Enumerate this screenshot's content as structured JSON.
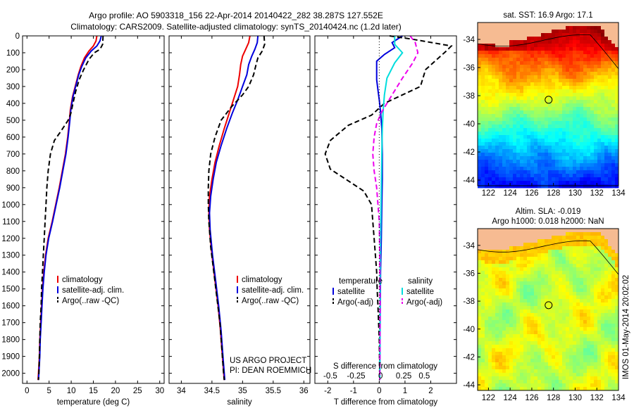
{
  "header": {
    "line1": "Argo profile: AO 5903318_156 22-Apr-2014 20140422_282 38.287S 127.552E",
    "line2": "Climatology: CARS2009. Satellite-adjusted climatology: synTS_20140424.nc (1.2d later)"
  },
  "chart_data": [
    {
      "type": "line",
      "xlabel": "temperature (deg C)",
      "xlim": [
        -1,
        31
      ],
      "ylim": [
        0,
        2060
      ],
      "xticks": [
        0,
        5,
        10,
        15,
        20,
        25,
        30
      ],
      "yticks": [
        0,
        100,
        200,
        300,
        400,
        500,
        600,
        700,
        800,
        900,
        1000,
        1100,
        1200,
        1300,
        1400,
        1500,
        1600,
        1700,
        1800,
        1900,
        2000
      ],
      "legend": [
        "climatology",
        "satellite-adj. clim.",
        "Argo(..raw -QC)"
      ],
      "series": [
        {
          "name": "climatology",
          "color": "#ee0000",
          "dash": false,
          "points": [
            [
              15.8,
              0
            ],
            [
              15.6,
              30
            ],
            [
              15.0,
              60
            ],
            [
              14.0,
              90
            ],
            [
              13.0,
              130
            ],
            [
              12.2,
              180
            ],
            [
              11.6,
              230
            ],
            [
              11.0,
              290
            ],
            [
              10.3,
              360
            ],
            [
              9.8,
              440
            ],
            [
              9.6,
              500
            ],
            [
              9.2,
              600
            ],
            [
              8.7,
              700
            ],
            [
              8.0,
              800
            ],
            [
              7.3,
              900
            ],
            [
              6.5,
              1000
            ],
            [
              5.7,
              1100
            ],
            [
              4.8,
              1200
            ],
            [
              4.2,
              1300
            ],
            [
              3.8,
              1400
            ],
            [
              3.5,
              1500
            ],
            [
              3.3,
              1600
            ],
            [
              3.1,
              1700
            ],
            [
              2.9,
              1800
            ],
            [
              2.8,
              1900
            ],
            [
              2.6,
              2000
            ],
            [
              2.5,
              2040
            ]
          ]
        },
        {
          "name": "satellite-adj. clim.",
          "color": "#0000dd",
          "dash": false,
          "points": [
            [
              16.8,
              0
            ],
            [
              16.5,
              30
            ],
            [
              15.8,
              60
            ],
            [
              14.5,
              90
            ],
            [
              13.3,
              130
            ],
            [
              12.4,
              180
            ],
            [
              11.7,
              230
            ],
            [
              11.1,
              290
            ],
            [
              10.4,
              360
            ],
            [
              9.9,
              440
            ],
            [
              9.7,
              500
            ],
            [
              9.3,
              600
            ],
            [
              8.8,
              700
            ],
            [
              8.1,
              800
            ],
            [
              7.4,
              900
            ],
            [
              6.6,
              1000
            ],
            [
              5.8,
              1100
            ],
            [
              4.9,
              1200
            ],
            [
              4.3,
              1300
            ],
            [
              3.9,
              1400
            ],
            [
              3.6,
              1500
            ],
            [
              3.4,
              1600
            ],
            [
              3.2,
              1700
            ],
            [
              3.0,
              1800
            ],
            [
              2.9,
              1900
            ],
            [
              2.7,
              2000
            ],
            [
              2.6,
              2040
            ]
          ]
        },
        {
          "name": "Argo(..raw -QC)",
          "color": "#000000",
          "dash": true,
          "points": [
            [
              17.2,
              0
            ],
            [
              17.1,
              50
            ],
            [
              16.5,
              80
            ],
            [
              15.2,
              100
            ],
            [
              14.0,
              140
            ],
            [
              12.8,
              200
            ],
            [
              11.8,
              260
            ],
            [
              11.0,
              330
            ],
            [
              10.4,
              400
            ],
            [
              9.9,
              460
            ],
            [
              9.3,
              500
            ],
            [
              7.8,
              560
            ],
            [
              6.2,
              620
            ],
            [
              5.3,
              700
            ],
            [
              4.8,
              800
            ],
            [
              4.5,
              900
            ],
            [
              4.3,
              1000
            ],
            [
              4.1,
              1100
            ],
            [
              3.9,
              1200
            ],
            [
              3.7,
              1300
            ],
            [
              3.5,
              1400
            ],
            [
              3.3,
              1500
            ],
            [
              3.2,
              1600
            ],
            [
              3.0,
              1700
            ],
            [
              2.9,
              1800
            ],
            [
              2.8,
              1900
            ],
            [
              2.7,
              2000
            ],
            [
              2.6,
              2040
            ]
          ]
        }
      ]
    },
    {
      "type": "line",
      "xlabel": "salinity",
      "xlim": [
        33.8,
        36.1
      ],
      "ylim": [
        0,
        2060
      ],
      "xticks": [
        34,
        34.5,
        35,
        35.5,
        36
      ],
      "legend": [
        "climatology",
        "satellite-adj. clim.",
        "Argo(..raw -QC)"
      ],
      "annotation": [
        "US ARGO PROJECT",
        "PI: DEAN ROEMMICH"
      ],
      "series": [
        {
          "name": "climatology",
          "color": "#ee0000",
          "dash": false,
          "points": [
            [
              35.12,
              0
            ],
            [
              35.1,
              40
            ],
            [
              35.05,
              80
            ],
            [
              35.0,
              120
            ],
            [
              34.97,
              170
            ],
            [
              34.95,
              230
            ],
            [
              34.92,
              300
            ],
            [
              34.85,
              380
            ],
            [
              34.78,
              460
            ],
            [
              34.7,
              550
            ],
            [
              34.62,
              650
            ],
            [
              34.55,
              750
            ],
            [
              34.5,
              850
            ],
            [
              34.46,
              950
            ],
            [
              34.45,
              1050
            ],
            [
              34.46,
              1150
            ],
            [
              34.5,
              1300
            ],
            [
              34.55,
              1450
            ],
            [
              34.6,
              1600
            ],
            [
              34.64,
              1750
            ],
            [
              34.67,
              1900
            ],
            [
              34.7,
              2040
            ]
          ]
        },
        {
          "name": "satellite-adj. clim.",
          "color": "#0000dd",
          "dash": false,
          "points": [
            [
              35.25,
              0
            ],
            [
              35.24,
              40
            ],
            [
              35.2,
              80
            ],
            [
              35.15,
              120
            ],
            [
              35.1,
              170
            ],
            [
              35.07,
              230
            ],
            [
              35.0,
              300
            ],
            [
              34.92,
              380
            ],
            [
              34.83,
              460
            ],
            [
              34.74,
              550
            ],
            [
              34.65,
              650
            ],
            [
              34.57,
              750
            ],
            [
              34.52,
              850
            ],
            [
              34.48,
              950
            ],
            [
              34.46,
              1050
            ],
            [
              34.47,
              1150
            ],
            [
              34.51,
              1300
            ],
            [
              34.56,
              1450
            ],
            [
              34.61,
              1600
            ],
            [
              34.65,
              1750
            ],
            [
              34.68,
              1900
            ],
            [
              34.71,
              2040
            ]
          ]
        },
        {
          "name": "Argo(..raw -QC)",
          "color": "#000000",
          "dash": true,
          "points": [
            [
              35.35,
              0
            ],
            [
              35.36,
              50
            ],
            [
              35.32,
              90
            ],
            [
              35.25,
              130
            ],
            [
              35.22,
              170
            ],
            [
              35.18,
              230
            ],
            [
              35.1,
              300
            ],
            [
              35.0,
              350
            ],
            [
              34.82,
              420
            ],
            [
              34.65,
              500
            ],
            [
              34.55,
              600
            ],
            [
              34.48,
              700
            ],
            [
              34.45,
              800
            ],
            [
              34.44,
              900
            ],
            [
              34.44,
              1000
            ],
            [
              34.45,
              1100
            ],
            [
              34.48,
              1250
            ],
            [
              34.53,
              1400
            ],
            [
              34.58,
              1550
            ],
            [
              34.63,
              1700
            ],
            [
              34.66,
              1850
            ],
            [
              34.69,
              2000
            ],
            [
              34.7,
              2040
            ]
          ]
        }
      ]
    },
    {
      "type": "line",
      "xlabel": "T difference from climatology",
      "toplabel": "S difference from climatology",
      "xlim": [
        -2.5,
        3.0
      ],
      "ylim": [
        0,
        2060
      ],
      "xticks": [
        -2,
        -1,
        0,
        1,
        2
      ],
      "xticks_salinity": [
        "-0.5",
        "-0.25",
        "0",
        "0.25",
        "0.5"
      ],
      "legend": [
        "temperature",
        "satellite",
        "Argo(-adj)",
        "salinity",
        "satellite",
        "Argo(-adj)"
      ],
      "series": [
        {
          "name": "temperature satellite",
          "color": "#0000dd",
          "dash": false,
          "points": [
            [
              0.9,
              0
            ],
            [
              0.5,
              40
            ],
            [
              0.6,
              70
            ],
            [
              0.2,
              110
            ],
            [
              -0.1,
              150
            ],
            [
              -0.1,
              200
            ],
            [
              -0.1,
              260
            ],
            [
              -0.05,
              320
            ],
            [
              0,
              380
            ],
            [
              0.05,
              450
            ],
            [
              0.1,
              550
            ],
            [
              0.12,
              700
            ],
            [
              0.12,
              850
            ],
            [
              0.1,
              1000
            ],
            [
              0.08,
              1200
            ],
            [
              0.05,
              1400
            ],
            [
              0.04,
              1600
            ],
            [
              0.03,
              1800
            ],
            [
              0.02,
              2040
            ]
          ]
        },
        {
          "name": "temperature Argo(-adj)",
          "color": "#000000",
          "dash": true,
          "points": [
            [
              0.4,
              0
            ],
            [
              1.3,
              20
            ],
            [
              2.8,
              60
            ],
            [
              2.6,
              90
            ],
            [
              1.8,
              200
            ],
            [
              1.6,
              300
            ],
            [
              0.2,
              400
            ],
            [
              -0.3,
              470
            ],
            [
              -1.2,
              530
            ],
            [
              -1.9,
              620
            ],
            [
              -2.1,
              700
            ],
            [
              -1.9,
              790
            ],
            [
              -1.1,
              870
            ],
            [
              -0.6,
              920
            ],
            [
              -0.3,
              1000
            ],
            [
              -0.25,
              1100
            ],
            [
              -0.2,
              1200
            ],
            [
              -0.15,
              1300
            ],
            [
              -0.1,
              1400
            ],
            [
              -0.08,
              1500
            ],
            [
              -0.05,
              1600
            ],
            [
              0,
              1800
            ],
            [
              0.02,
              2040
            ]
          ]
        },
        {
          "name": "salinity satellite",
          "color": "#00dddd",
          "dash": false,
          "points": [
            [
              0.6,
              0
            ],
            [
              0.6,
              50
            ],
            [
              0.9,
              100
            ],
            [
              0.6,
              160
            ],
            [
              0.3,
              250
            ],
            [
              0.2,
              350
            ],
            [
              0.15,
              450
            ],
            [
              0.12,
              550
            ],
            [
              0.1,
              700
            ],
            [
              0.08,
              900
            ],
            [
              0.06,
              1100
            ],
            [
              0.04,
              1300
            ],
            [
              0.03,
              1600
            ],
            [
              0.02,
              2040
            ]
          ]
        },
        {
          "name": "salinity Argo(-adj)",
          "color": "#ee00ee",
          "dash": true,
          "points": [
            [
              1.2,
              0
            ],
            [
              1.4,
              40
            ],
            [
              1.5,
              100
            ],
            [
              1.3,
              160
            ],
            [
              0.9,
              250
            ],
            [
              0.5,
              350
            ],
            [
              0.1,
              450
            ],
            [
              -0.1,
              520
            ],
            [
              -0.2,
              600
            ],
            [
              -0.25,
              700
            ],
            [
              -0.2,
              800
            ],
            [
              -0.1,
              900
            ],
            [
              -0.05,
              1000
            ],
            [
              0,
              1100
            ],
            [
              0.02,
              1300
            ],
            [
              0.03,
              1600
            ],
            [
              0.02,
              2040
            ]
          ]
        }
      ]
    },
    {
      "type": "heatmap",
      "title": "sat. SST: 16.9 Argo: 17.1",
      "xlim": [
        121,
        134
      ],
      "ylim": [
        -44.4,
        -32.8
      ],
      "xticks": [
        122,
        124,
        126,
        128,
        130,
        132,
        134
      ],
      "yticks": [
        -34,
        -36,
        -38,
        -40,
        -42,
        -44
      ],
      "marker": [
        127.55,
        -38.29
      ]
    },
    {
      "type": "heatmap",
      "title": "Altim. SLA: -0.019",
      "subtitle": "Argo h1000: 0.018 h2000: NaN",
      "xlim": [
        121,
        134
      ],
      "ylim": [
        -44.4,
        -32.8
      ],
      "xticks": [
        122,
        124,
        126,
        128,
        130,
        132,
        134
      ],
      "yticks": [
        -34,
        -36,
        -38,
        -40,
        -42,
        -44
      ],
      "marker": [
        127.55,
        -38.29
      ]
    }
  ],
  "side_stamp": "IMOS 01-May-2014 20:02:02",
  "colors": {
    "land": "#f6bb92"
  }
}
